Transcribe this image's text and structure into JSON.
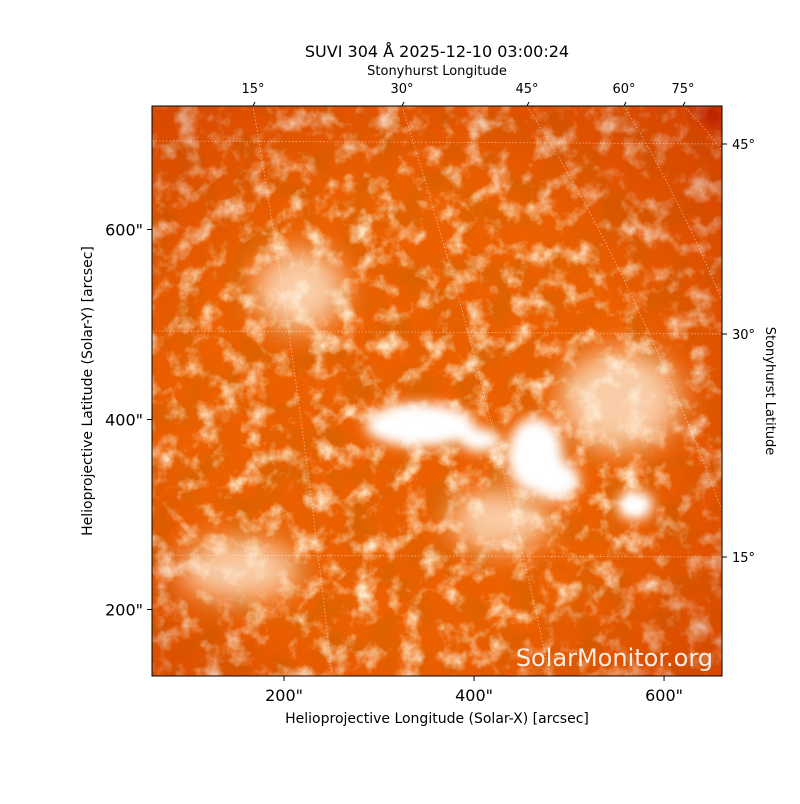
{
  "chart_data": {
    "type": "image",
    "title": "SUVI 304 Å 2025-12-10 03:00:24",
    "x_label": "Helioprojective Longitude (Solar-X) [arcsec]",
    "y_label": "Helioprojective Latitude (Solar-Y) [arcsec]",
    "top_label": "Stonyhurst Longitude",
    "right_label": "Stonyhurst Latitude",
    "xlim": [
      61,
      661
    ],
    "ylim": [
      130,
      730
    ],
    "xticks": [
      {
        "value": 200,
        "label": "200\""
      },
      {
        "value": 400,
        "label": "400\""
      },
      {
        "value": 600,
        "label": "600\""
      }
    ],
    "yticks": [
      {
        "value": 200,
        "label": "200\""
      },
      {
        "value": 400,
        "label": "400\""
      },
      {
        "value": 600,
        "label": "600\""
      }
    ],
    "top_ticks": [
      "15°",
      "30°",
      "45°",
      "60°",
      "75°"
    ],
    "right_ticks": [
      "45°",
      "30°",
      "15°"
    ],
    "watermark": "SolarMonitor.org"
  }
}
